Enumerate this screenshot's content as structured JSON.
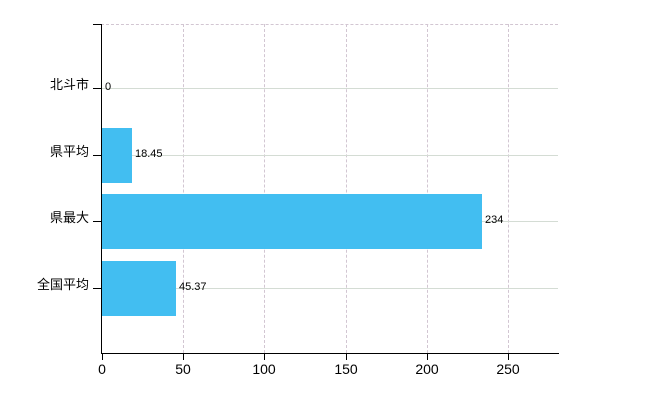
{
  "chart_data": {
    "type": "bar",
    "orientation": "horizontal",
    "title": "",
    "xlabel": "",
    "ylabel": "",
    "categories": [
      "北斗市",
      "県平均",
      "県最大",
      "全国平均"
    ],
    "values": [
      0,
      18.45,
      234,
      45.37
    ],
    "value_labels": [
      "0",
      "18.45",
      "234",
      "45.37"
    ],
    "x_ticks": [
      0,
      50,
      100,
      150,
      200,
      250
    ],
    "x_tick_labels": [
      "0",
      "50",
      "100",
      "150",
      "200",
      "250"
    ],
    "xlim": [
      0,
      280
    ],
    "grid": true,
    "legend": "none",
    "bar_color": "#42bef1",
    "h_grid_color": "#d4dcd4",
    "v_grid_color": "#d2c6d2",
    "axis_color": "#000000",
    "text_color": "#000000",
    "background_color": "#ffffff"
  }
}
